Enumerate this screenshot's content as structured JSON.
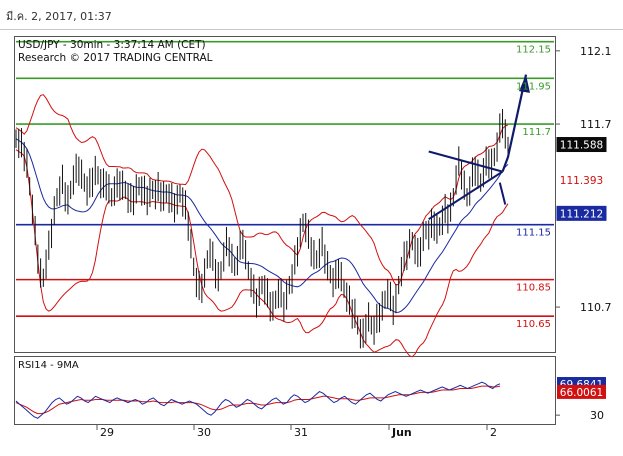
{
  "header": {
    "timestamp": "มี.ค. 2, 2017, 01:37"
  },
  "chart_data": {
    "type": "line",
    "title": "USD/JPY - 30min - 3:37:14 AM (CET)",
    "subtitle": "Research © 2017 TRADING CENTRAL",
    "price_axis": {
      "ylim": [
        110.46,
        112.17
      ],
      "ticks": [
        "112.1",
        "111.7",
        "110.7"
      ],
      "tick_values": [
        112.1,
        111.7,
        110.7
      ]
    },
    "x_tick_labels": [
      "29",
      "30",
      "31",
      "Jun",
      "2"
    ],
    "levels": [
      {
        "value": 112.15,
        "label": "112.15",
        "color": "#3a9b2a"
      },
      {
        "value": 111.95,
        "label": "111.95",
        "color": "#3a9b2a"
      },
      {
        "value": 111.7,
        "label": "111.7",
        "color": "#3a9b2a"
      },
      {
        "value": 111.15,
        "label": "111.15",
        "color": "#1a2aa0"
      },
      {
        "value": 110.85,
        "label": "110.85",
        "color": "#d21010"
      },
      {
        "value": 110.65,
        "label": "110.65",
        "color": "#d21010"
      }
    ],
    "price_badges": [
      {
        "value": 111.588,
        "label": "111.588",
        "bg": "#0a0a0a",
        "fg": "#ffffff"
      },
      {
        "value": 111.393,
        "label": "111.393",
        "bg": "#ffffff",
        "fg": "#d21010"
      },
      {
        "value": 111.212,
        "label": "111.212",
        "bg": "#1a2aa0",
        "fg": "#ffffff"
      }
    ],
    "price_series": [
      111.62,
      111.6,
      111.58,
      111.54,
      111.48,
      111.36,
      111.24,
      111.1,
      110.98,
      110.88,
      110.86,
      110.94,
      111.02,
      111.12,
      111.22,
      111.3,
      111.34,
      111.38,
      111.32,
      111.28,
      111.34,
      111.4,
      111.44,
      111.46,
      111.42,
      111.38,
      111.34,
      111.36,
      111.4,
      111.44,
      111.42,
      111.38,
      111.36,
      111.38,
      111.34,
      111.3,
      111.34,
      111.36,
      111.38,
      111.36,
      111.34,
      111.3,
      111.28,
      111.3,
      111.34,
      111.36,
      111.34,
      111.32,
      111.3,
      111.32,
      111.34,
      111.32,
      111.34,
      111.32,
      111.3,
      111.32,
      111.3,
      111.28,
      111.26,
      111.28,
      111.32,
      111.28,
      111.24,
      111.16,
      111.04,
      110.92,
      110.84,
      110.8,
      110.82,
      110.88,
      110.96,
      111.0,
      110.96,
      110.9,
      110.86,
      110.9,
      110.98,
      111.04,
      111.02,
      110.96,
      110.92,
      110.96,
      111.02,
      111.06,
      110.98,
      110.9,
      110.84,
      110.78,
      110.74,
      110.78,
      110.82,
      110.8,
      110.76,
      110.72,
      110.7,
      110.74,
      110.78,
      110.76,
      110.72,
      110.76,
      110.82,
      110.86,
      110.94,
      111.02,
      111.1,
      111.16,
      111.14,
      111.08,
      111.02,
      110.98,
      110.96,
      111.0,
      111.04,
      110.98,
      110.92,
      110.88,
      110.84,
      110.86,
      110.9,
      110.86,
      110.8,
      110.76,
      110.72,
      110.68,
      110.66,
      110.6,
      110.56,
      110.54,
      110.6,
      110.64,
      110.6,
      110.58,
      110.62,
      110.66,
      110.7,
      110.74,
      110.78,
      110.74,
      110.7,
      110.74,
      110.82,
      110.9,
      110.96,
      111.0,
      111.04,
      111.06,
      111.02,
      110.98,
      111.02,
      111.08,
      111.12,
      111.1,
      111.14,
      111.16,
      111.12,
      111.14,
      111.18,
      111.22,
      111.2,
      111.24,
      111.3,
      111.4,
      111.48,
      111.44,
      111.36,
      111.3,
      111.34,
      111.42,
      111.46,
      111.42,
      111.38,
      111.44,
      111.48,
      111.5,
      111.48,
      111.52,
      111.58,
      111.66,
      111.72,
      111.64,
      111.58
    ],
    "annotations": {
      "triangle": "symmetrical triangle",
      "forecast_arrow": "up"
    },
    "rsi": {
      "title": "RSI14 - 9MA",
      "ylim": [
        20,
        85
      ],
      "ticks": [
        "30"
      ],
      "tick_values": [
        30
      ],
      "badges": [
        {
          "value": 69.6841,
          "label": "69.6841",
          "bg": "#1a2aa0",
          "fg": "#ffffff"
        },
        {
          "value": 66.0061,
          "label": "66.0061",
          "bg": "#d21010",
          "fg": "#ffffff"
        }
      ],
      "rsi_series": [
        48,
        44,
        40,
        36,
        32,
        28,
        26,
        30,
        34,
        40,
        46,
        50,
        52,
        48,
        44,
        46,
        50,
        54,
        52,
        48,
        46,
        50,
        54,
        52,
        50,
        48,
        46,
        50,
        52,
        50,
        48,
        46,
        48,
        50,
        48,
        44,
        46,
        50,
        52,
        48,
        44,
        42,
        46,
        50,
        48,
        46,
        44,
        46,
        48,
        46,
        44,
        40,
        36,
        32,
        30,
        34,
        40,
        46,
        50,
        48,
        44,
        40,
        42,
        46,
        50,
        48,
        44,
        40,
        38,
        42,
        46,
        50,
        52,
        48,
        44,
        46,
        52,
        56,
        54,
        50,
        46,
        48,
        52,
        56,
        60,
        58,
        54,
        50,
        46,
        48,
        52,
        54,
        50,
        46,
        44,
        48,
        52,
        56,
        58,
        54,
        50,
        48,
        52,
        56,
        58,
        60,
        58,
        56,
        54,
        56,
        58,
        60,
        62,
        60,
        58,
        60,
        62,
        64,
        66,
        64,
        62,
        64,
        66,
        68,
        66,
        64,
        66,
        68,
        70,
        72,
        70,
        66,
        64,
        68,
        70
      ],
      "ma_series": [
        46,
        44,
        42,
        40,
        37,
        34,
        32,
        32,
        33,
        35,
        38,
        41,
        44,
        45,
        46,
        47,
        48,
        49,
        50,
        49,
        49,
        49,
        50,
        50,
        50,
        49,
        49,
        49,
        49,
        49,
        49,
        48,
        48,
        48,
        48,
        47,
        47,
        47,
        48,
        47,
        46,
        46,
        46,
        46,
        47,
        46,
        46,
        46,
        46,
        46,
        45,
        44,
        42,
        40,
        38,
        37,
        37,
        38,
        40,
        42,
        43,
        43,
        43,
        44,
        45,
        45,
        45,
        44,
        43,
        43,
        44,
        45,
        46,
        46,
        46,
        46,
        47,
        49,
        50,
        50,
        50,
        50,
        51,
        52,
        53,
        54,
        54,
        53,
        52,
        51,
        51,
        51,
        51,
        50,
        49,
        49,
        50,
        51,
        52,
        52,
        52,
        52,
        52,
        53,
        54,
        55,
        56,
        56,
        56,
        56,
        57,
        58,
        59,
        59,
        59,
        59,
        60,
        61,
        62,
        62,
        62,
        62,
        63,
        64,
        64,
        64,
        64,
        65,
        66,
        67,
        67,
        67,
        66,
        66,
        67
      ]
    }
  }
}
